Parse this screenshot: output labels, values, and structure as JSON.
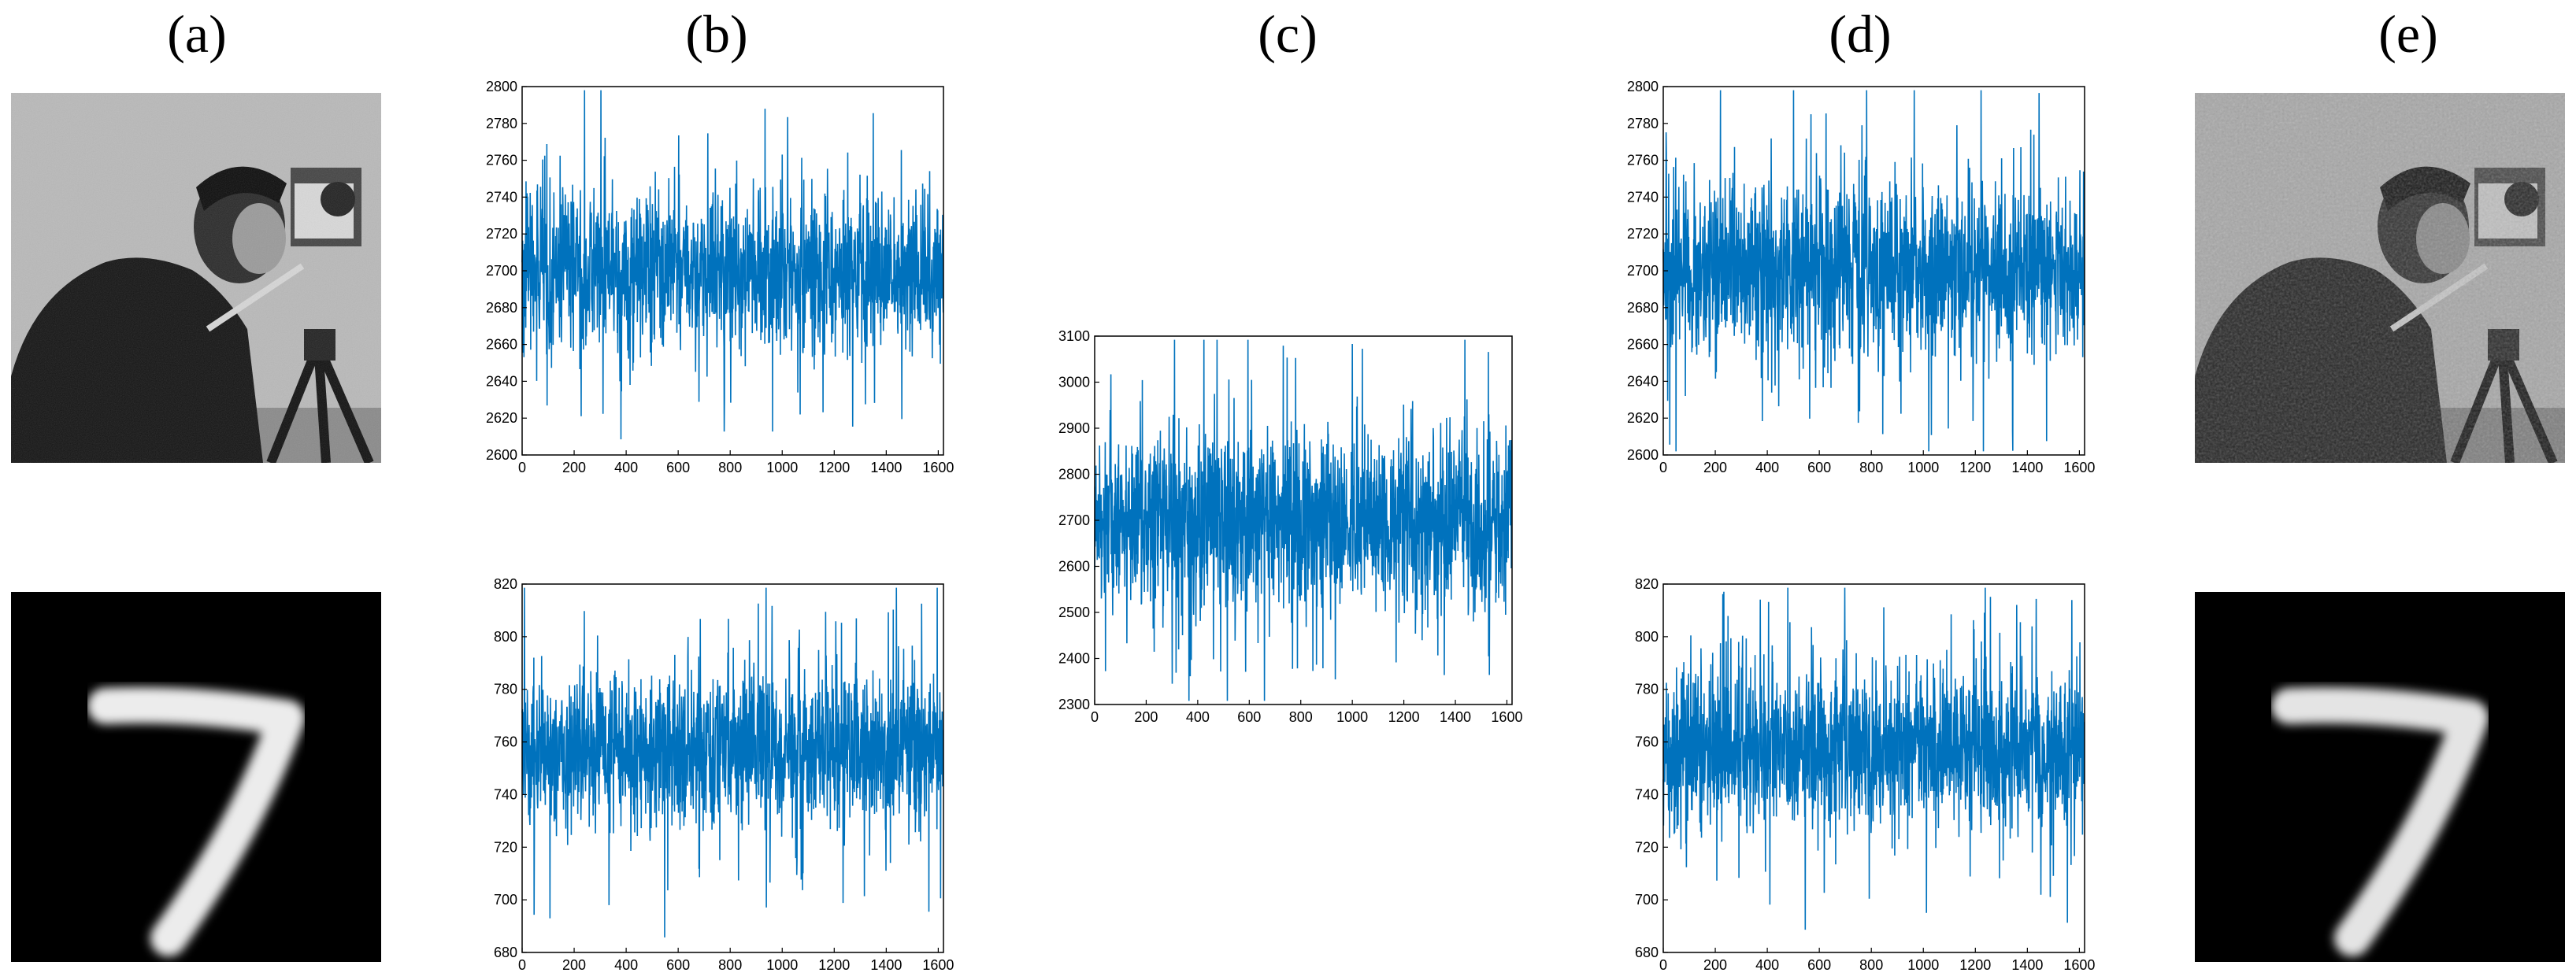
{
  "panel_labels": [
    "(a)",
    "(b)",
    "(c)",
    "(d)",
    "(e)"
  ],
  "colors": {
    "series": "#0072BD",
    "axis": "#000000"
  },
  "images": [
    {
      "name": "cameraman-original",
      "description_icon": "cameraman-photo-grayscale"
    },
    {
      "name": "digit-7-original",
      "description_icon": "handwritten-digit-7"
    },
    {
      "name": "cameraman-recovered",
      "description_icon": "cameraman-photo-grayscale-noisy"
    },
    {
      "name": "digit-7-recovered",
      "description_icon": "handwritten-digit-7"
    }
  ],
  "chart_data": [
    {
      "id": "b-top",
      "type": "line",
      "xlim": [
        0,
        1620
      ],
      "ylim": [
        2600,
        2800
      ],
      "xticks": [
        "0",
        "200",
        "400",
        "600",
        "800",
        "1000",
        "1200",
        "1400",
        "1600"
      ],
      "yticks": [
        "2600",
        "2620",
        "2640",
        "2660",
        "2680",
        "2700",
        "2720",
        "2740",
        "2760",
        "2780",
        "2800"
      ],
      "n": 1620,
      "mean": 2700,
      "amp": 38,
      "grid": false
    },
    {
      "id": "b-bottom",
      "type": "line",
      "xlim": [
        0,
        1620
      ],
      "ylim": [
        680,
        820
      ],
      "xticks": [
        "0",
        "200",
        "400",
        "600",
        "800",
        "1000",
        "1200",
        "1400",
        "1600"
      ],
      "yticks": [
        "680",
        "700",
        "720",
        "740",
        "760",
        "780",
        "800",
        "820"
      ],
      "n": 1620,
      "mean": 757,
      "amp": 26,
      "grid": false
    },
    {
      "id": "c",
      "type": "line",
      "xlim": [
        0,
        1620
      ],
      "ylim": [
        2300,
        3100
      ],
      "xticks": [
        "0",
        "200",
        "400",
        "600",
        "800",
        "1000",
        "1200",
        "1400",
        "1600"
      ],
      "yticks": [
        "2300",
        "2400",
        "2500",
        "2600",
        "2700",
        "2800",
        "2900",
        "3000",
        "3100"
      ],
      "n": 1620,
      "mean": 2700,
      "amp": 170,
      "grid": false
    },
    {
      "id": "d-top",
      "type": "line",
      "xlim": [
        0,
        1620
      ],
      "ylim": [
        2600,
        2800
      ],
      "xticks": [
        "0",
        "200",
        "400",
        "600",
        "800",
        "1000",
        "1200",
        "1400",
        "1600"
      ],
      "yticks": [
        "2600",
        "2620",
        "2640",
        "2660",
        "2680",
        "2700",
        "2720",
        "2740",
        "2760",
        "2780",
        "2800"
      ],
      "n": 1620,
      "mean": 2700,
      "amp": 40,
      "grid": false
    },
    {
      "id": "d-bottom",
      "type": "line",
      "xlim": [
        0,
        1620
      ],
      "ylim": [
        680,
        820
      ],
      "xticks": [
        "0",
        "200",
        "400",
        "600",
        "800",
        "1000",
        "1200",
        "1400",
        "1600"
      ],
      "yticks": [
        "680",
        "700",
        "720",
        "740",
        "760",
        "780",
        "800",
        "820"
      ],
      "n": 1620,
      "mean": 757,
      "amp": 27,
      "grid": false
    }
  ]
}
